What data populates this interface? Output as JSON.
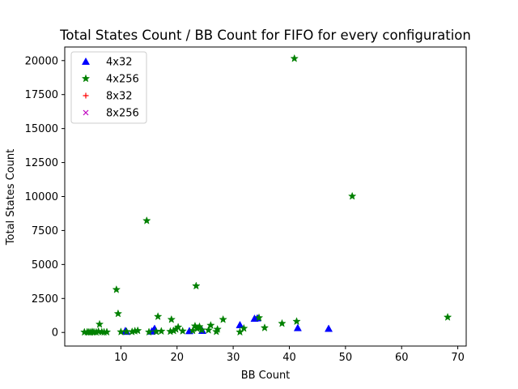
{
  "chart_data": {
    "type": "scatter",
    "title": "Total States Count / BB Count for FIFO for every configuration",
    "xlabel": "BB Count",
    "ylabel": "Total States Count",
    "xlim": [
      0,
      71.5
    ],
    "ylim": [
      -1000,
      21000
    ],
    "x_ticks": [
      10,
      20,
      30,
      40,
      50,
      60,
      70
    ],
    "y_ticks": [
      0,
      2500,
      5000,
      7500,
      10000,
      12500,
      15000,
      17500,
      20000
    ],
    "grid": false,
    "legend_position": "top-left",
    "series": [
      {
        "name": "4x32",
        "marker": "triangle",
        "color": "#0000ff",
        "points": [
          [
            10.8,
            120
          ],
          [
            11.0,
            60
          ],
          [
            15.5,
            80
          ],
          [
            15.8,
            150
          ],
          [
            16.0,
            280
          ],
          [
            22.2,
            110
          ],
          [
            24.5,
            130
          ],
          [
            31.2,
            550
          ],
          [
            33.8,
            1020
          ],
          [
            34.3,
            1050
          ],
          [
            41.5,
            330
          ],
          [
            47.0,
            280
          ]
        ]
      },
      {
        "name": "4x256",
        "marker": "star",
        "color": "#008000",
        "points": [
          [
            3.5,
            20
          ],
          [
            4.0,
            30
          ],
          [
            4.3,
            20
          ],
          [
            4.6,
            10
          ],
          [
            4.9,
            40
          ],
          [
            5.2,
            25
          ],
          [
            5.6,
            15
          ],
          [
            6.0,
            70
          ],
          [
            6.2,
            600
          ],
          [
            6.6,
            30
          ],
          [
            7.0,
            20
          ],
          [
            7.5,
            30
          ],
          [
            9.2,
            3150
          ],
          [
            9.5,
            1380
          ],
          [
            10.0,
            40
          ],
          [
            11.0,
            60
          ],
          [
            12.0,
            50
          ],
          [
            12.5,
            100
          ],
          [
            13.0,
            130
          ],
          [
            14.6,
            8220
          ],
          [
            15.0,
            30
          ],
          [
            16.3,
            60
          ],
          [
            16.6,
            1170
          ],
          [
            17.2,
            90
          ],
          [
            18.8,
            70
          ],
          [
            19.0,
            950
          ],
          [
            19.4,
            120
          ],
          [
            19.8,
            230
          ],
          [
            20.2,
            390
          ],
          [
            21.0,
            100
          ],
          [
            22.8,
            130
          ],
          [
            23.2,
            470
          ],
          [
            23.4,
            3420
          ],
          [
            23.6,
            280
          ],
          [
            24.0,
            420
          ],
          [
            24.4,
            180
          ],
          [
            25.6,
            170
          ],
          [
            26.0,
            520
          ],
          [
            27.0,
            60
          ],
          [
            27.2,
            230
          ],
          [
            28.2,
            950
          ],
          [
            31.2,
            30
          ],
          [
            31.9,
            300
          ],
          [
            34.6,
            1080
          ],
          [
            35.6,
            340
          ],
          [
            38.7,
            660
          ],
          [
            40.9,
            20150
          ],
          [
            41.3,
            810
          ],
          [
            51.2,
            10020
          ],
          [
            68.2,
            1120
          ]
        ]
      },
      {
        "name": "8x32",
        "marker": "plus",
        "color": "#ff0000",
        "points": []
      },
      {
        "name": "8x256",
        "marker": "x",
        "color": "#bf00bf",
        "points": []
      }
    ]
  }
}
